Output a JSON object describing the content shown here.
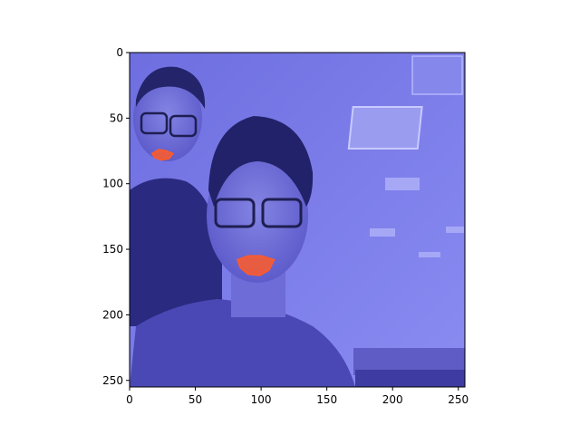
{
  "chart_data": {
    "type": "image",
    "title": "",
    "xlabel": "",
    "ylabel": "",
    "xlim": [
      0,
      255
    ],
    "ylim": [
      255,
      0
    ],
    "x_ticks": [
      0,
      50,
      100,
      150,
      200,
      250
    ],
    "y_ticks": [
      0,
      50,
      100,
      150,
      200,
      250
    ],
    "grid": false,
    "image_content": "photo of two smiling people in an office, tinted blue",
    "overlay_color": "#5a5af0",
    "segments": [
      {
        "label_color": "#ff5a28",
        "kind": "mouth",
        "polygon": [
          [
            17,
            77
          ],
          [
            22,
            74
          ],
          [
            28,
            75
          ],
          [
            33,
            77
          ],
          [
            30,
            81
          ],
          [
            24,
            82
          ],
          [
            19,
            80
          ]
        ]
      },
      {
        "label_color": "#ff5a28",
        "kind": "mouth",
        "polygon": [
          [
            82,
            158
          ],
          [
            90,
            155
          ],
          [
            100,
            155
          ],
          [
            110,
            158
          ],
          [
            106,
            166
          ],
          [
            99,
            170
          ],
          [
            90,
            169
          ],
          [
            84,
            164
          ]
        ]
      }
    ]
  }
}
